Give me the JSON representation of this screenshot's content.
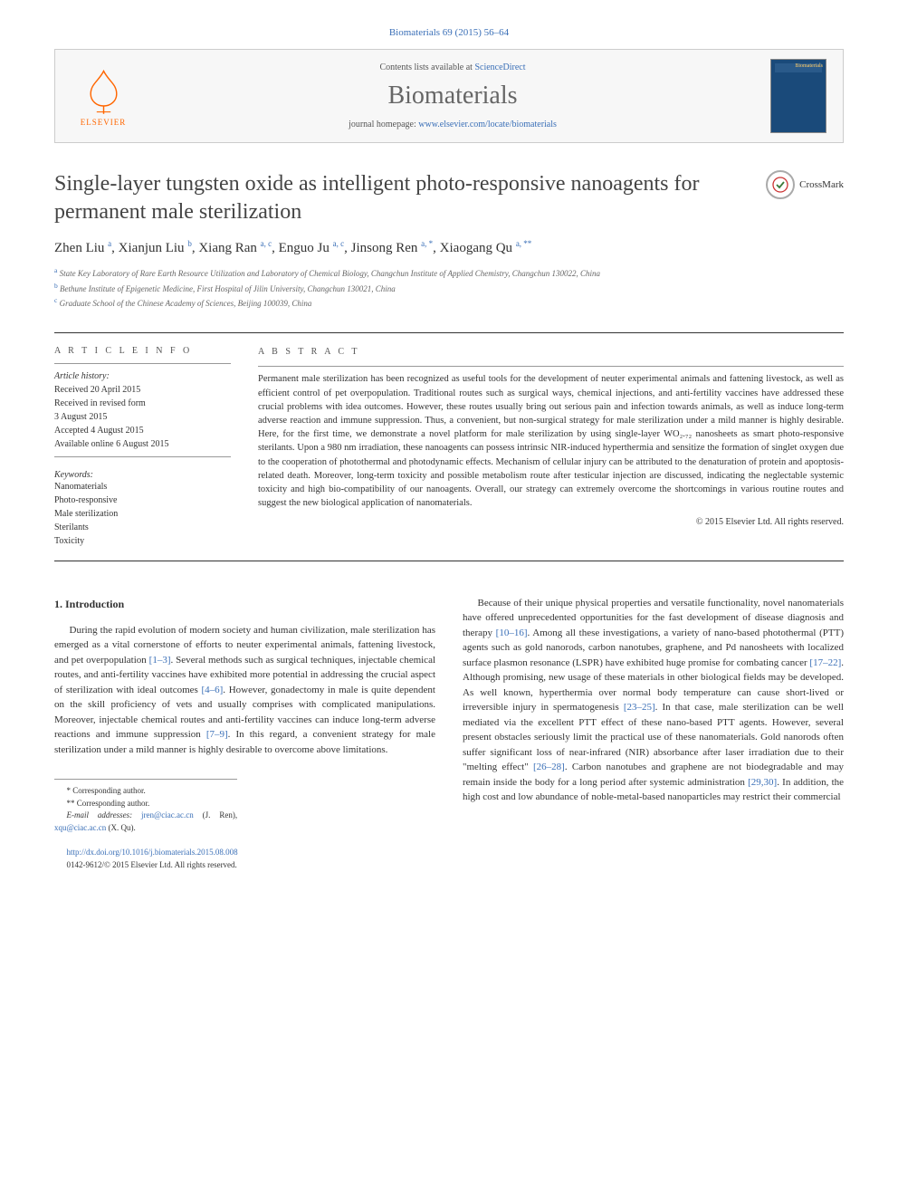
{
  "header_citation": "Biomaterials 69 (2015) 56–64",
  "banner": {
    "contents_prefix": "Contents lists available at ",
    "contents_link": "ScienceDirect",
    "journal_name": "Biomaterials",
    "homepage_prefix": "journal homepage: ",
    "homepage_link": "www.elsevier.com/locate/biomaterials",
    "elsevier_label": "ELSEVIER",
    "cover_label": "Biomaterials"
  },
  "crossmark_label": "CrossMark",
  "title": "Single-layer tungsten oxide as intelligent photo-responsive nanoagents for permanent male sterilization",
  "authors_html": "Zhen Liu <sup>a</sup>, Xianjun Liu <sup>b</sup>, Xiang Ran <sup>a, c</sup>, Enguo Ju <sup>a, c</sup>, Jinsong Ren <sup>a, *</sup>, Xiaogang Qu <sup>a, **</sup>",
  "affiliations": {
    "a": "State Key Laboratory of Rare Earth Resource Utilization and Laboratory of Chemical Biology, Changchun Institute of Applied Chemistry, Changchun 130022, China",
    "b": "Bethune Institute of Epigenetic Medicine, First Hospital of Jilin University, Changchun 130021, China",
    "c": "Graduate School of the Chinese Academy of Sciences, Beijing 100039, China"
  },
  "info_header": "A R T I C L E   I N F O",
  "abstract_header": "A B S T R A C T",
  "history": {
    "label": "Article history:",
    "received": "Received 20 April 2015",
    "revised": "Received in revised form",
    "revised_date": "3 August 2015",
    "accepted": "Accepted 4 August 2015",
    "online": "Available online 6 August 2015"
  },
  "keywords": {
    "label": "Keywords:",
    "items": [
      "Nanomaterials",
      "Photo-responsive",
      "Male sterilization",
      "Sterilants",
      "Toxicity"
    ]
  },
  "abstract_text": "Permanent male sterilization has been recognized as useful tools for the development of neuter experimental animals and fattening livestock, as well as efficient control of pet overpopulation. Traditional routes such as surgical ways, chemical injections, and anti-fertility vaccines have addressed these crucial problems with idea outcomes. However, these routes usually bring out serious pain and infection towards animals, as well as induce long-term adverse reaction and immune suppression. Thus, a convenient, but non-surgical strategy for male sterilization under a mild manner is highly desirable. Here, for the first time, we demonstrate a novel platform for male sterilization by using single-layer WO₂.₇₂ nanosheets as smart photo-responsive sterilants. Upon a 980 nm irradiation, these nanoagents can possess intrinsic NIR-induced hyperthermia and sensitize the formation of singlet oxygen due to the cooperation of photothermal and photodynamic effects. Mechanism of cellular injury can be attributed to the denaturation of protein and apoptosis-related death. Moreover, long-term toxicity and possible metabolism route after testicular injection are discussed, indicating the neglectable systemic toxicity and high bio-compatibility of our nanoagents. Overall, our strategy can extremely overcome the shortcomings in various routine routes and suggest the new biological application of nanomaterials.",
  "copyright": "© 2015 Elsevier Ltd. All rights reserved.",
  "body": {
    "intro_heading": "1. Introduction",
    "col1_p1": "During the rapid evolution of modern society and human civilization, male sterilization has emerged as a vital cornerstone of efforts to neuter experimental animals, fattening livestock, and pet overpopulation [1–3]. Several methods such as surgical techniques, injectable chemical routes, and anti-fertility vaccines have exhibited more potential in addressing the crucial aspect of sterilization with ideal outcomes [4–6]. However, gonadectomy in male is quite dependent on the skill proficiency of vets and usually comprises with complicated manipulations. Moreover, injectable chemical routes and anti-fertility vaccines can induce long-term adverse reactions and immune suppression [7–9]. In this regard, a convenient strategy for male sterilization under a mild manner is highly desirable to overcome above limitations.",
    "col2_p1": "Because of their unique physical properties and versatile functionality, novel nanomaterials have offered unprecedented opportunities for the fast development of disease diagnosis and therapy [10–16]. Among all these investigations, a variety of nano-based photothermal (PTT) agents such as gold nanorods, carbon nanotubes, graphene, and Pd nanosheets with localized surface plasmon resonance (LSPR) have exhibited huge promise for combating cancer [17–22]. Although promising, new usage of these materials in other biological fields may be developed. As well known, hyperthermia over normal body temperature can cause short-lived or irreversible injury in spermatogenesis [23–25]. In that case, male sterilization can be well mediated via the excellent PTT effect of these nano-based PTT agents. However, several present obstacles seriously limit the practical use of these nanomaterials. Gold nanorods often suffer significant loss of near-infrared (NIR) absorbance after laser irradiation due to their \"melting effect\" [26–28]. Carbon nanotubes and graphene are not biodegradable and may remain inside the body for a long period after systemic administration [29,30]. In addition, the high cost and low abundance of noble-metal-based nanoparticles may restrict their commercial",
    "refs": {
      "r1": "[1–3]",
      "r2": "[4–6]",
      "r3": "[7–9]",
      "r4": "[10–16]",
      "r5": "[17–22]",
      "r6": "[23–25]",
      "r7": "[26–28]",
      "r8": "[29,30]"
    }
  },
  "footnotes": {
    "corr1": "* Corresponding author.",
    "corr2": "** Corresponding author.",
    "email_label": "E-mail addresses: ",
    "email1": "jren@ciac.ac.cn",
    "email1_name": " (J. Ren), ",
    "email2": "xqu@ciac.ac.cn",
    "email2_name": " (X. Qu)."
  },
  "footer": {
    "doi": "http://dx.doi.org/10.1016/j.biomaterials.2015.08.008",
    "issn": "0142-9612/© 2015 Elsevier Ltd. All rights reserved."
  },
  "colors": {
    "link": "#3a6fb7",
    "elsevier_orange": "#ff6600",
    "text": "#333333",
    "muted": "#666666",
    "rule": "#333333"
  }
}
